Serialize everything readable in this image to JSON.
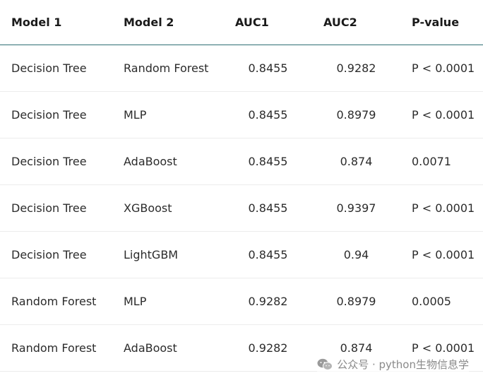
{
  "table": {
    "headers": [
      "Model 1",
      "Model 2",
      "AUC1",
      "AUC2",
      "P-value"
    ],
    "rows": [
      [
        "Decision Tree",
        "Random Forest",
        "0.8455",
        "0.9282",
        "P < 0.0001"
      ],
      [
        "Decision Tree",
        "MLP",
        "0.8455",
        "0.8979",
        "P < 0.0001"
      ],
      [
        "Decision Tree",
        "AdaBoost",
        "0.8455",
        "0.874",
        "0.0071"
      ],
      [
        "Decision Tree",
        "XGBoost",
        "0.8455",
        "0.9397",
        "P < 0.0001"
      ],
      [
        "Decision Tree",
        "LightGBM",
        "0.8455",
        "0.94",
        "P < 0.0001"
      ],
      [
        "Random Forest",
        "MLP",
        "0.9282",
        "0.8979",
        "0.0005"
      ],
      [
        "Random Forest",
        "AdaBoost",
        "0.9282",
        "0.874",
        "P < 0.0001"
      ]
    ]
  },
  "watermark": {
    "text": "公众号 · python生物信息学",
    "icon": "wechat-icon"
  },
  "colors": {
    "header_rule": "#2f6f73",
    "row_rule": "#ececec",
    "text": "#2b2b2b",
    "watermark": "#8a8a8a"
  }
}
